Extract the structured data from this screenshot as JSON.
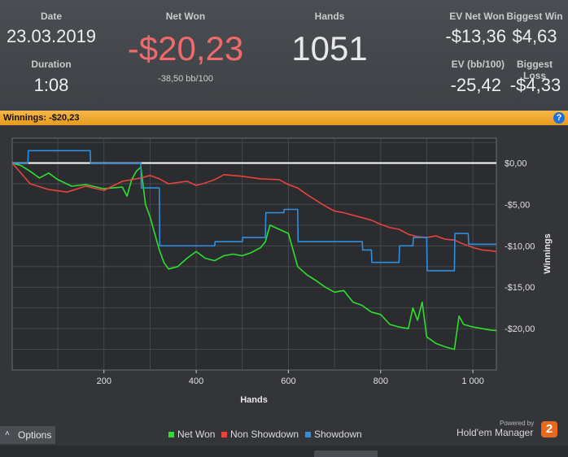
{
  "stats": {
    "date_label": "Date",
    "date_value": "23.03.2019",
    "duration_label": "Duration",
    "duration_value": "1:08",
    "net_won_label": "Net Won",
    "net_won_value": "-$20,23",
    "bb_value": "-38,50 bb/100",
    "hands_label": "Hands",
    "hands_value": "1051",
    "ev_net_won_label": "EV Net Won",
    "ev_net_won_value": "-$13,36",
    "biggest_win_label": "Biggest Win",
    "biggest_win_value": "$4,63",
    "ev_bb_label": "EV (bb/100)",
    "ev_bb_value": "-25,42",
    "biggest_loss_label": "Biggest Loss",
    "biggest_loss_value": "-$4,33"
  },
  "winnings_bar": {
    "label": "Winnings:",
    "value": "-$20,23",
    "help_icon": "?"
  },
  "colors": {
    "net_won": "#2ee02e",
    "non_showdown": "#e8433c",
    "showdown": "#2f8fdf",
    "negative": "#ef6a6a",
    "accent": "#f0a733"
  },
  "options_label": "Options",
  "options_icon": "chevron-up-icon",
  "legend": [
    "Net Won",
    "Non Showdown",
    "Showdown"
  ],
  "brand": {
    "powered": "Powered by",
    "name": "Hold'em Manager",
    "logo_text": "2"
  },
  "chart_data": {
    "type": "line",
    "xlabel": "Hands",
    "ylabel": "Winnings",
    "xlim": [
      1,
      1051
    ],
    "ylim": [
      -25,
      3
    ],
    "x_ticks": [
      200,
      400,
      600,
      800,
      1000
    ],
    "x_tick_labels": [
      "200",
      "400",
      "600",
      "800",
      "1 000"
    ],
    "y_ticks": [
      0,
      -5,
      -10,
      -15,
      -20
    ],
    "y_tick_labels": [
      "$0,00",
      "-$5,00",
      "-$10,00",
      "-$15,00",
      "-$20,00"
    ],
    "grid": true,
    "legend_position": "bottom",
    "series": [
      {
        "name": "Net Won",
        "color": "#2ee02e",
        "x": [
          1,
          20,
          40,
          60,
          80,
          100,
          130,
          160,
          200,
          240,
          250,
          260,
          270,
          280,
          290,
          300,
          310,
          320,
          330,
          340,
          360,
          380,
          400,
          420,
          440,
          460,
          480,
          500,
          520,
          540,
          550,
          560,
          580,
          600,
          610,
          620,
          640,
          660,
          680,
          700,
          720,
          740,
          760,
          780,
          800,
          820,
          840,
          860,
          870,
          880,
          890,
          900,
          920,
          940,
          960,
          970,
          980,
          1000,
          1020,
          1040,
          1051
        ],
        "y": [
          0,
          -0.3,
          -1.0,
          -1.8,
          -1.2,
          -2.0,
          -2.8,
          -2.6,
          -3.1,
          -2.9,
          -4.0,
          -2.0,
          -1.0,
          -0.5,
          -5.0,
          -6.5,
          -8.5,
          -10.5,
          -12.0,
          -12.8,
          -12.5,
          -11.5,
          -10.7,
          -11.5,
          -11.8,
          -11.2,
          -11.0,
          -11.2,
          -10.8,
          -10.2,
          -9.5,
          -7.5,
          -8.0,
          -8.5,
          -10.5,
          -12.5,
          -13.5,
          -14.2,
          -15.0,
          -15.6,
          -15.4,
          -16.8,
          -17.2,
          -18.0,
          -18.3,
          -19.5,
          -19.8,
          -20.0,
          -17.5,
          -19.0,
          -16.8,
          -21.0,
          -21.8,
          -22.2,
          -22.5,
          -18.5,
          -19.5,
          -19.8,
          -20.0,
          -20.2,
          -20.23
        ]
      },
      {
        "name": "Non Showdown",
        "color": "#e8433c",
        "x": [
          1,
          40,
          80,
          120,
          160,
          200,
          240,
          280,
          300,
          320,
          340,
          380,
          400,
          420,
          440,
          460,
          500,
          540,
          580,
          600,
          620,
          640,
          680,
          700,
          720,
          740,
          760,
          780,
          800,
          820,
          840,
          860,
          880,
          900,
          920,
          940,
          960,
          980,
          1000,
          1020,
          1040,
          1051
        ],
        "y": [
          0,
          -2.5,
          -3.2,
          -3.5,
          -2.8,
          -3.3,
          -2.2,
          -1.8,
          -1.5,
          -1.9,
          -2.5,
          -2.2,
          -2.7,
          -2.4,
          -2.0,
          -1.4,
          -1.6,
          -1.9,
          -2.0,
          -2.6,
          -3.0,
          -3.8,
          -5.2,
          -5.8,
          -6.0,
          -6.3,
          -6.6,
          -6.9,
          -7.4,
          -7.8,
          -8.0,
          -8.6,
          -8.9,
          -9.0,
          -8.8,
          -9.2,
          -9.3,
          -9.8,
          -10.2,
          -10.5,
          -10.6,
          -10.7
        ]
      },
      {
        "name": "Showdown",
        "color": "#2f8fdf",
        "x": [
          1,
          35,
          36,
          170,
          171,
          280,
          281,
          320,
          321,
          440,
          441,
          500,
          501,
          550,
          551,
          590,
          591,
          620,
          621,
          680,
          681,
          760,
          761,
          780,
          781,
          840,
          841,
          870,
          871,
          900,
          901,
          960,
          961,
          990,
          991,
          1051
        ],
        "y": [
          0,
          0,
          1.5,
          1.5,
          0,
          0,
          -3.0,
          -3.0,
          -10.0,
          -10.0,
          -9.5,
          -9.5,
          -9.0,
          -9.0,
          -6.0,
          -6.0,
          -5.6,
          -5.6,
          -9.5,
          -9.5,
          -9.5,
          -9.5,
          -10.5,
          -10.5,
          -12.0,
          -12.0,
          -10.0,
          -10.0,
          -9.0,
          -9.0,
          -13.0,
          -13.0,
          -8.5,
          -8.5,
          -9.8,
          -9.8
        ]
      }
    ]
  }
}
